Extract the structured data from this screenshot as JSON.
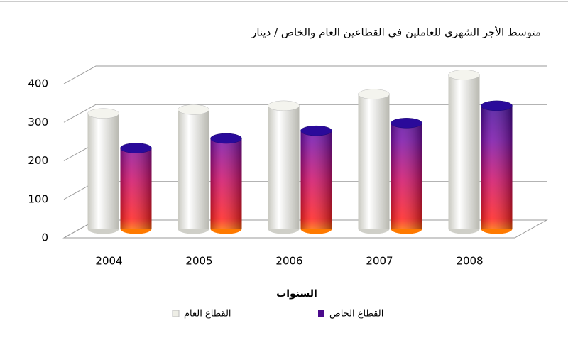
{
  "chart_data": {
    "type": "bar3d",
    "title": "متوسط الأجر الشهري للعاملين في القطاعين العام والخاص / دينار",
    "x_label": "السنوات",
    "categories": [
      "2004",
      "2005",
      "2006",
      "2007",
      "2008"
    ],
    "series": [
      {
        "name": "القطاع العام",
        "color": "#eeeee6",
        "values": [
          300,
          310,
          320,
          350,
          400
        ]
      },
      {
        "name": "القطاع الخاص",
        "color": "#4b0a8c",
        "values": [
          210,
          235,
          255,
          275,
          320
        ]
      }
    ],
    "ylim": [
      0,
      400
    ],
    "yticks": [
      0,
      100,
      200,
      300,
      400
    ],
    "grid": true
  }
}
